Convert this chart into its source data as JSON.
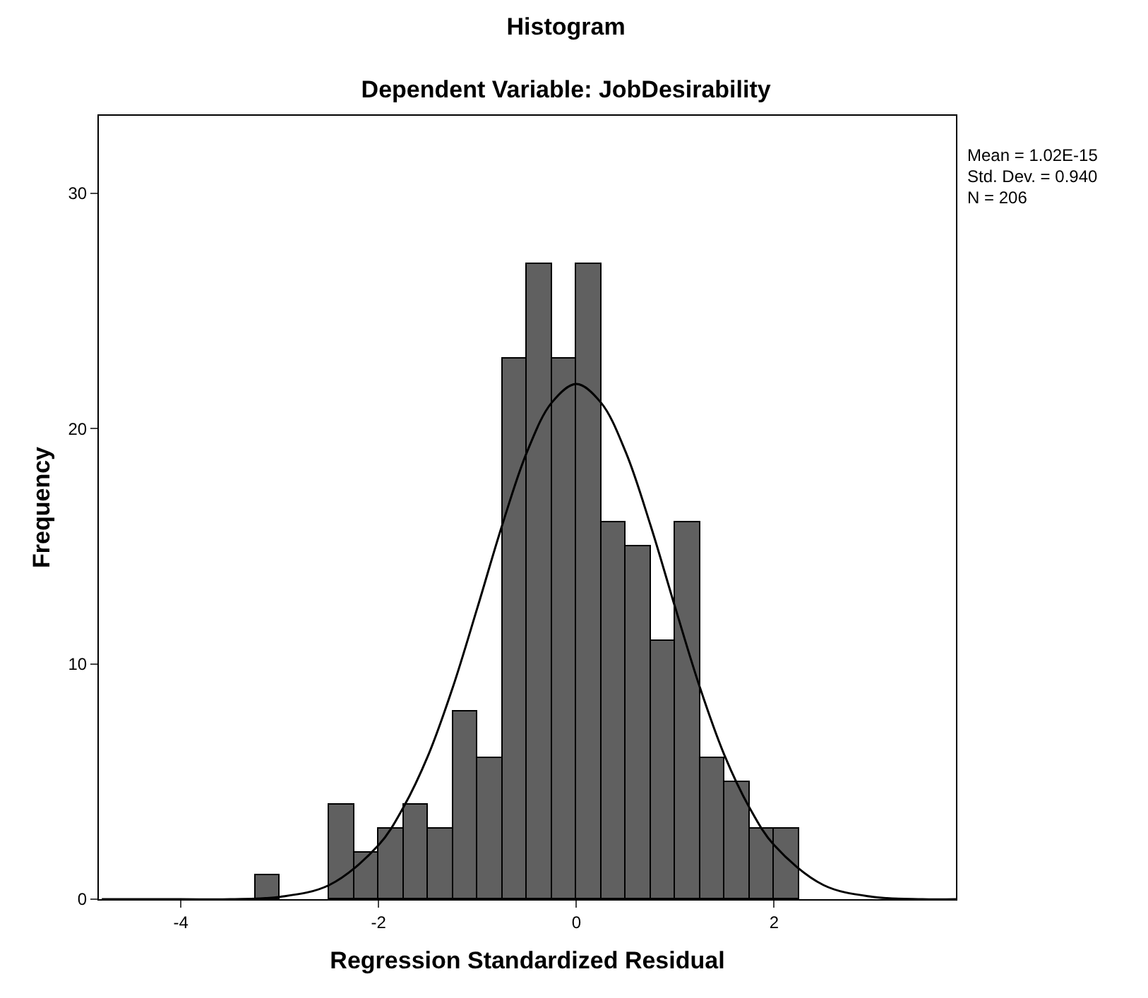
{
  "chart_data": {
    "type": "histogram",
    "title": "Histogram",
    "subtitle": "Dependent Variable: JobDesirability",
    "xlabel": "Regression Standardized Residual",
    "ylabel": "Frequency",
    "bins": [
      -3.25,
      -3,
      -2.75,
      -2.5,
      -2.25,
      -2,
      -1.75,
      -1.5,
      -1.25,
      -1,
      -0.75,
      -0.5,
      -0.25,
      0,
      0.25,
      0.5,
      0.75,
      1,
      1.25,
      1.5,
      1.75,
      2,
      2.25
    ],
    "values": [
      1,
      0,
      0,
      4,
      2,
      3,
      4,
      3,
      8,
      6,
      23,
      27,
      23,
      27,
      16,
      15,
      11,
      16,
      6,
      5,
      3,
      3
    ],
    "color": "#606060",
    "series": [
      {
        "type": "line",
        "color": "#000000",
        "x": [
          -4.8,
          -4,
          -3.5,
          -3,
          -2.5,
          -2,
          -1.75,
          -1.5,
          -1.25,
          -1,
          -0.75,
          -0.5,
          -0.25,
          0,
          0.25,
          0.5,
          0.75,
          1,
          1.25,
          1.5,
          1.75,
          2,
          2.5,
          3,
          3.5,
          3.84
        ],
        "values": [
          0,
          0,
          0,
          0.1,
          0.6,
          2.3,
          3.9,
          6.1,
          9,
          12.4,
          15.9,
          19,
          21.1,
          21.9,
          21.1,
          19,
          15.9,
          12.4,
          9,
          6.1,
          3.9,
          2.3,
          0.6,
          0.1,
          0,
          0
        ]
      }
    ],
    "xlim": [
      -4.83,
      3.84
    ],
    "xticks": [
      -4,
      -2,
      0,
      2
    ],
    "ylim": [
      0,
      33.3
    ],
    "yticks": [
      0,
      10,
      20,
      30
    ],
    "grid": false,
    "annotations": [
      "Mean = 1.02E-15",
      "Std. Dev. = 0.940",
      "N = 206"
    ]
  }
}
